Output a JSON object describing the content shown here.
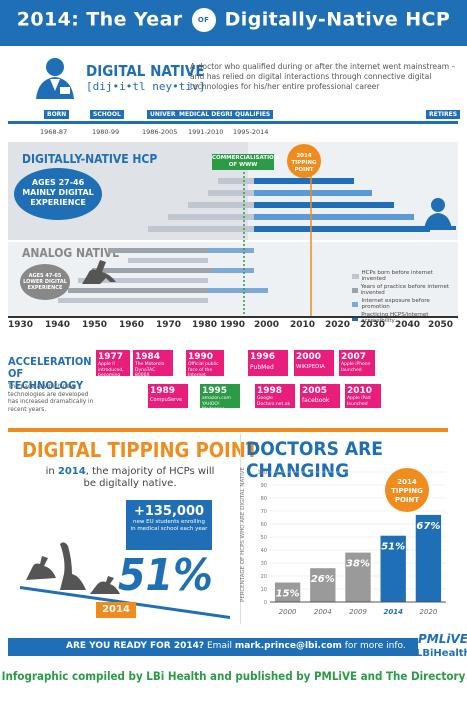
{
  "header": {
    "title_pre": "2014: The Year",
    "badge": "OF THE",
    "title_post": "Digitally-Native HCP"
  },
  "definition": {
    "term": "DIGITAL NATIVE",
    "phonetic": "[dij•i•tl ney•tiv]",
    "text": "A doctor who qualified during or after the internet went mainstream – and has relied on digital interactions through connective digital technologies for his/her entire professional career"
  },
  "timeline": {
    "stages": [
      "BORN",
      "SCHOOL",
      "UNIVERSITY",
      "MEDICAL DEGREE",
      "QUALIFIES",
      "RETIRES"
    ],
    "dates": [
      "1968-87",
      "1980-99",
      "1986-2005",
      "1991-2010",
      "1995-2014"
    ]
  },
  "sections": {
    "digital_native": "DIGITALLY-NATIVE HCP",
    "digital_badge": "AGES 27-46 MAINLY DIGITAL EXPERIENCE",
    "analog_native": "ANALOG NATIVE",
    "analog_badge": "AGES 47-65 LOWER DIGITAL EXPERIENCE",
    "commercialisation": "COMMERCIALISATION OF WWW",
    "tipping_top": "2014 TIPPING POINT"
  },
  "legend": [
    "HCPs born before internet invented",
    "Years of practice before internet invented",
    "Internet exposure before promotion",
    "Practicing HCPS/internet accessibility"
  ],
  "axis_years": [
    "1930",
    "1940",
    "1950",
    "1960",
    "1970",
    "1980",
    "1990",
    "2000",
    "2010",
    "2020",
    "2030",
    "2040",
    "2050"
  ],
  "acceleration": {
    "title": "ACCELERATION OF TECHNOLOGY",
    "text": "The pace at which new technologies are developed has increased dramatically in recent years.",
    "items": [
      {
        "year": "1977",
        "text": "Apple II introduced, becoming first successful PC"
      },
      {
        "year": "1984",
        "text": "The Motorola DynaTAC 8000X launched"
      },
      {
        "year": "1990",
        "text": "Official public face of the Internet launched"
      },
      {
        "year": "1996",
        "text": "PubMed"
      },
      {
        "year": "2000",
        "text": "WIKIPEDIA"
      },
      {
        "year": "2007",
        "text": "Apple iPhone launched"
      },
      {
        "year": "1989",
        "text": "CompuServe"
      },
      {
        "year": "1995",
        "text": "amazon.com YAHOO! Medscape"
      },
      {
        "year": "1998",
        "text": "Google Doctors.net.uk"
      },
      {
        "year": "2005",
        "text": "facebook"
      },
      {
        "year": "2010",
        "text": "Apple iPad launched"
      }
    ]
  },
  "tipping": {
    "title": "DIGITAL TIPPING POINT",
    "sub_pre": "in",
    "sub_year": "2014",
    "sub_post": ", the majority of HCPs will be digitally native.",
    "students_number": "+135,000",
    "students_text": "new EU students enrolling in medical school each year",
    "big_percent": "51%",
    "seesaw_year": "2014"
  },
  "chart_data": {
    "type": "bar",
    "title": "DOCTORS ARE CHANGING",
    "ylabel": "PERCENTAGE OF HCPS WHO ARE DIGITAL NATIVE",
    "categories": [
      "2000",
      "2004",
      "2009",
      "2014",
      "2020"
    ],
    "values": [
      15,
      26,
      38,
      51,
      67
    ],
    "labels": [
      "15%",
      "26%",
      "38%",
      "51%",
      "67%"
    ],
    "ylim": [
      0,
      100
    ],
    "yticks": [
      "0",
      "10",
      "20",
      "30",
      "40",
      "50",
      "60",
      "70",
      "80",
      "90",
      "100"
    ],
    "annotation": "2014 TIPPING POINT",
    "colors": [
      "#9a9a9a",
      "#9a9a9a",
      "#9a9a9a",
      "#1f6fb6",
      "#1f6fb6"
    ]
  },
  "cta": {
    "question": "ARE YOU READY FOR 2014?",
    "email_pre": "Email",
    "email": "mark.prince@lbi.com",
    "email_post": "for more info."
  },
  "logos": {
    "pmlive": "PMLiVE",
    "lbi": "LBiHealth"
  },
  "footer": "Infographic compiled by LBi Health and published by PMLiVE and The Directory"
}
